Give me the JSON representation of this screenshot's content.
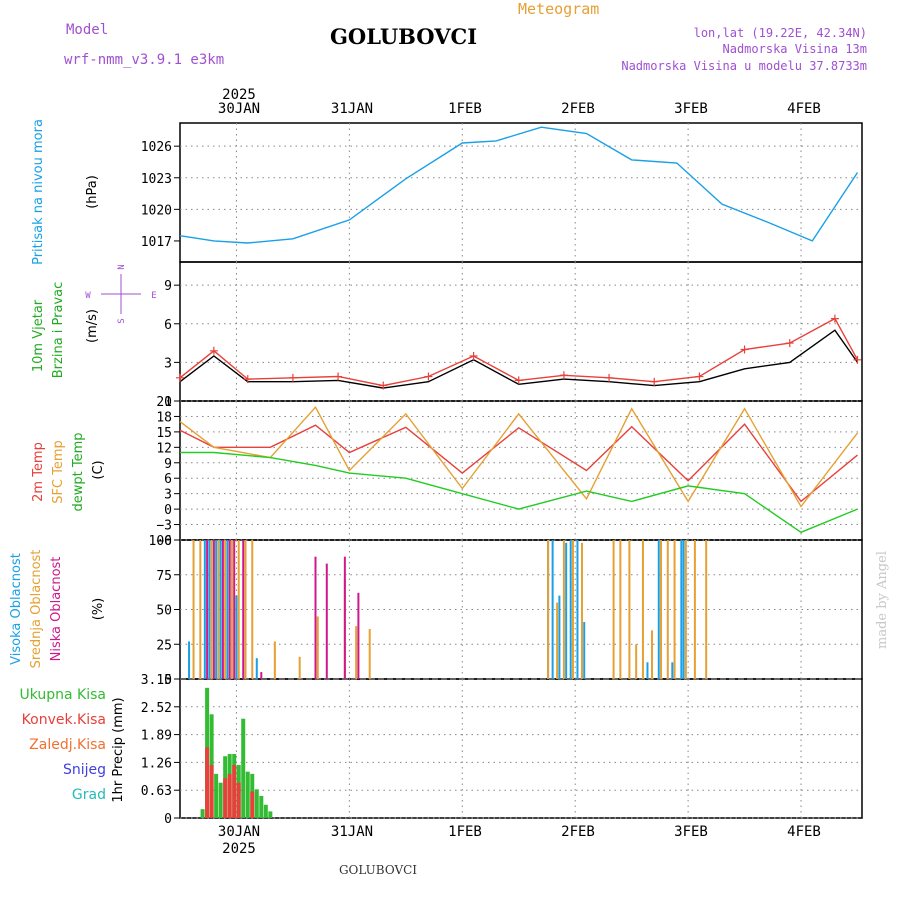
{
  "header": {
    "model_label": "Model",
    "model_name": "wrf-nmm_v3.9.1  e3km",
    "station": "GOLUBOVCI",
    "meteogram": "Meteogram",
    "coords": "lon,lat (19.22E, 42.34N)",
    "elevation": "Nadmorska Visina 13m",
    "model_elevation": "Nadmorska Visina u modelu 37.8733m",
    "footer_station": "GOLUBOVCI",
    "credit": "made by Angel",
    "year_top": "2025",
    "year_bottom": "2025"
  },
  "colors": {
    "pressure": "#1aa0e6",
    "temp2m": "#e8403a",
    "sfc": "#e6a033",
    "dewpt": "#22cc22",
    "cloud_high": "#1aa0e6",
    "cloud_mid": "#e6a033",
    "cloud_low": "#cc1a8c",
    "precip_total": "#33bb33",
    "precip_conv": "#e8403a",
    "snow": "#4040dd",
    "grad": "#22bbbb",
    "purple": "#a050d0",
    "grid": "#888888"
  },
  "chart_data": [
    {
      "type": "line",
      "panel": "pressure",
      "labels": [
        "Pritisak na nivou mora",
        "(hPa)"
      ],
      "yticks": [
        1017,
        1020,
        1023,
        1026
      ],
      "ylim": [
        1015,
        1028.2
      ],
      "series": [
        {
          "name": "MSLP",
          "x": [
            0,
            0.3,
            0.6,
            1.0,
            1.5,
            2.0,
            2.5,
            2.8,
            3.2,
            3.6,
            4.0,
            4.4,
            4.8,
            5.2,
            5.6,
            6.0
          ],
          "y": [
            1017.5,
            1017.0,
            1016.8,
            1017.2,
            1019.0,
            1022.9,
            1026.3,
            1026.5,
            1027.8,
            1027.2,
            1024.7,
            1024.4,
            1020.5,
            1018.8,
            1017.0,
            1023.5
          ]
        }
      ]
    },
    {
      "type": "line",
      "panel": "wind",
      "labels": [
        "10m Vjetar",
        "Brzina i Pravac",
        "(m/s)"
      ],
      "compass": {
        "north": "N",
        "south": "S",
        "west": "W",
        "east": "E"
      },
      "yticks": [
        0,
        3,
        6,
        9
      ],
      "ylim": [
        0,
        10.8
      ],
      "series": [
        {
          "name": "speed",
          "x": [
            0,
            0.3,
            0.6,
            1.0,
            1.4,
            1.8,
            2.2,
            2.6,
            3.0,
            3.4,
            3.8,
            4.2,
            4.6,
            5.0,
            5.4,
            5.8,
            6.0
          ],
          "y": [
            1.5,
            3.5,
            1.5,
            1.5,
            1.6,
            1.0,
            1.5,
            3.2,
            1.3,
            1.7,
            1.5,
            1.2,
            1.5,
            2.5,
            3.0,
            5.5,
            3.0
          ]
        },
        {
          "name": "gust",
          "x": [
            0,
            0.3,
            0.6,
            1.0,
            1.4,
            1.8,
            2.2,
            2.6,
            3.0,
            3.4,
            3.8,
            4.2,
            4.6,
            5.0,
            5.4,
            5.8,
            6.0
          ],
          "y": [
            1.8,
            3.9,
            1.7,
            1.8,
            1.9,
            1.2,
            1.9,
            3.5,
            1.6,
            2.0,
            1.8,
            1.5,
            1.9,
            4.0,
            4.5,
            6.4,
            3.2
          ]
        }
      ]
    },
    {
      "type": "line",
      "panel": "temperature",
      "labels": [
        "2m Temp",
        "SFC Temp",
        "dewpt Temp",
        "(C)"
      ],
      "yticks": [
        -6,
        -3,
        0,
        3,
        6,
        9,
        12,
        15,
        18,
        21
      ],
      "ylim": [
        -6,
        21
      ],
      "series": [
        {
          "name": "2m Temp",
          "x": [
            0,
            0.3,
            0.8,
            1.2,
            1.5,
            2.0,
            2.5,
            3.0,
            3.6,
            4.0,
            4.5,
            5.0,
            5.5,
            6.0
          ],
          "y": [
            15.3,
            12.0,
            12.0,
            16.3,
            11.0,
            15.9,
            7.0,
            15.8,
            7.5,
            16.0,
            5.5,
            16.5,
            1.5,
            10.5
          ]
        },
        {
          "name": "SFC Temp",
          "x": [
            0,
            0.3,
            0.8,
            1.2,
            1.5,
            2.0,
            2.5,
            3.0,
            3.6,
            4.0,
            4.5,
            5.0,
            5.5,
            6.0
          ],
          "y": [
            17.0,
            12.0,
            10.0,
            19.8,
            7.5,
            18.5,
            4.0,
            18.5,
            2.0,
            19.5,
            1.5,
            19.5,
            0.5,
            14.8
          ]
        },
        {
          "name": "dewpt Temp",
          "x": [
            0,
            0.3,
            0.8,
            1.2,
            1.5,
            2.0,
            2.5,
            3.0,
            3.6,
            4.0,
            4.5,
            5.0,
            5.5,
            6.0
          ],
          "y": [
            11.0,
            11.0,
            10.0,
            8.5,
            7.0,
            6.0,
            3.0,
            0.0,
            3.5,
            1.5,
            4.5,
            3.0,
            -4.5,
            0.0
          ]
        }
      ]
    },
    {
      "type": "bar",
      "panel": "clouds",
      "labels": [
        "Visoka Oblacnost",
        "Srednja Oblacnost",
        "Niska Oblacnost",
        "(%)"
      ],
      "yticks": [
        0,
        25,
        50,
        75,
        100
      ],
      "ylim": [
        0,
        100
      ],
      "series": [
        {
          "name": "Visoka Oblacnost",
          "x": [
            0.08,
            0.22,
            0.26,
            0.32,
            0.36,
            0.42,
            0.5,
            0.68,
            3.26,
            3.3,
            3.36,
            3.42,
            3.46,
            3.52,
            3.58,
            4.14,
            4.24,
            4.36,
            4.44,
            4.46
          ],
          "y": [
            27,
            100,
            100,
            100,
            100,
            100,
            60,
            15,
            100,
            100,
            60,
            98,
            100,
            100,
            41,
            12,
            100,
            12,
            100,
            100
          ]
        },
        {
          "name": "Srednja Oblacnost",
          "x": [
            0.12,
            0.18,
            0.28,
            0.34,
            0.4,
            0.46,
            0.52,
            0.58,
            0.64,
            0.84,
            1.06,
            1.22,
            1.46,
            1.56,
            1.68,
            3.26,
            3.34,
            3.4,
            3.48,
            3.56,
            3.84,
            3.9,
            3.98,
            4.04,
            4.1,
            4.18,
            4.26,
            4.32,
            4.38,
            4.48,
            4.56,
            4.66
          ],
          "y": [
            100,
            100,
            100,
            100,
            100,
            100,
            100,
            100,
            100,
            27,
            16,
            45,
            72,
            38,
            36,
            100,
            55,
            100,
            100,
            98,
            100,
            100,
            100,
            25,
            100,
            35,
            100,
            100,
            100,
            100,
            100,
            100
          ]
        },
        {
          "name": "Niska Oblacnost",
          "x": [
            0.24,
            0.3,
            0.38,
            0.44,
            0.48,
            0.56,
            0.72,
            1.2,
            1.3,
            1.46,
            1.58
          ],
          "y": [
            100,
            100,
            100,
            100,
            100,
            100,
            5,
            88,
            83,
            88,
            62
          ]
        }
      ]
    },
    {
      "type": "bar",
      "panel": "precip",
      "labels": [
        "Ukupna Kisa",
        "Konvek.Kisa",
        "Zaledj.Kisa",
        "Snijeg",
        "Grad",
        "1hr Precip (mm)"
      ],
      "yticks": [
        0,
        0.63,
        1.26,
        1.89,
        2.52,
        3.15
      ],
      "ylim": [
        0,
        3.15
      ],
      "series": [
        {
          "name": "Ukupna Kisa",
          "x": [
            0.2,
            0.24,
            0.28,
            0.32,
            0.36,
            0.4,
            0.44,
            0.48,
            0.52,
            0.56,
            0.6,
            0.64,
            0.68,
            0.72,
            0.76,
            0.8
          ],
          "y": [
            0.2,
            2.95,
            2.35,
            1.0,
            0.8,
            1.4,
            1.45,
            1.45,
            1.2,
            2.25,
            1.05,
            1.0,
            0.65,
            0.5,
            0.3,
            0.15
          ]
        },
        {
          "name": "Konvek.Kisa",
          "x": [
            0.24,
            0.28,
            0.4,
            0.44,
            0.48,
            0.52,
            0.64
          ],
          "y": [
            1.6,
            1.2,
            0.9,
            1.0,
            1.2,
            0.8,
            0.6
          ]
        }
      ]
    }
  ],
  "x_axis": {
    "days_top": [
      "30JAN",
      "31JAN",
      "1FEB",
      "2FEB",
      "3FEB",
      "4FEB"
    ],
    "days_bottom": [
      "30JAN",
      "31JAN",
      "1FEB",
      "2FEB",
      "3FEB",
      "4FEB"
    ],
    "day_positions": [
      0.5,
      1.5,
      2.5,
      3.5,
      4.5,
      5.5
    ]
  }
}
